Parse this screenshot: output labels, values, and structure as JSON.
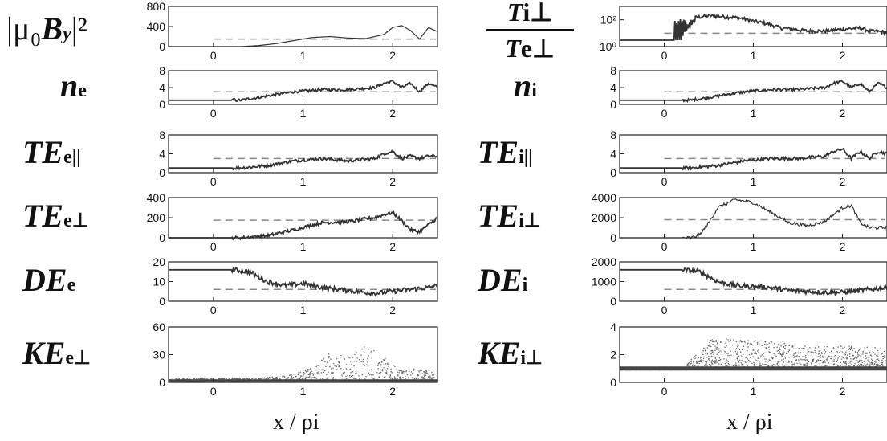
{
  "chart_data": [
    {
      "id": "L0",
      "type": "line",
      "ylabel_parts": {
        "pre": "|μ₀",
        "main": "B",
        "sub": "y",
        "post": "|²"
      },
      "yticks": [
        0,
        400,
        800
      ],
      "ylim": [
        0,
        800
      ],
      "xlim": [
        -0.5,
        2.5
      ],
      "xticks": [
        0,
        1,
        2
      ],
      "dashed_level": 150,
      "x": [
        -0.5,
        0.3,
        0.5,
        0.7,
        0.9,
        1.1,
        1.3,
        1.5,
        1.7,
        1.9,
        2.0,
        2.1,
        2.2,
        2.3,
        2.4,
        2.5
      ],
      "values": [
        0,
        0,
        20,
        60,
        120,
        180,
        200,
        170,
        160,
        240,
        380,
        420,
        320,
        150,
        380,
        300
      ]
    },
    {
      "id": "R0",
      "type": "line",
      "ylabel_parts": {
        "num": "T",
        "num_sub": "i⊥",
        "den": "T",
        "den_sub": "e⊥"
      },
      "yticks": [
        "10⁰",
        "10²"
      ],
      "yscale": "log",
      "ylim": [
        1,
        1000
      ],
      "xlim": [
        -0.5,
        2.5
      ],
      "xticks": [
        0,
        1,
        2
      ],
      "dashed_level": 10,
      "x": [
        -0.5,
        0.1,
        0.2,
        0.3,
        0.35,
        0.5,
        0.8,
        1.0,
        1.3,
        1.6,
        1.8,
        2.0,
        2.2,
        2.3,
        2.5
      ],
      "values": [
        3,
        3,
        3,
        30,
        150,
        200,
        150,
        80,
        25,
        15,
        15,
        20,
        25,
        15,
        12
      ]
    },
    {
      "id": "L1",
      "type": "line",
      "ylabel_parts": {
        "main": "n",
        "sub": "e"
      },
      "yticks": [
        0,
        4,
        8
      ],
      "ylim": [
        0,
        8
      ],
      "xlim": [
        -0.5,
        2.5
      ],
      "xticks": [
        0,
        1,
        2
      ],
      "dashed_level": 3,
      "x": [
        -0.5,
        0.3,
        0.6,
        0.9,
        1.2,
        1.5,
        1.8,
        1.9,
        2.0,
        2.1,
        2.2,
        2.3,
        2.4,
        2.5
      ],
      "values": [
        1,
        1,
        2,
        3,
        3.5,
        3.5,
        4,
        5,
        5.5,
        4,
        5,
        3,
        5,
        4
      ]
    },
    {
      "id": "R1",
      "type": "line",
      "ylabel_parts": {
        "main": "n",
        "sub": "i"
      },
      "yticks": [
        0,
        4,
        8
      ],
      "ylim": [
        0,
        8
      ],
      "xlim": [
        -0.5,
        2.5
      ],
      "xticks": [
        0,
        1,
        2
      ],
      "dashed_level": 3,
      "x": [
        -0.5,
        0.3,
        0.6,
        0.9,
        1.2,
        1.5,
        1.8,
        1.9,
        2.0,
        2.1,
        2.2,
        2.3,
        2.4,
        2.5
      ],
      "values": [
        1,
        1,
        2,
        3,
        3.5,
        3.5,
        4,
        5,
        5.5,
        4,
        5,
        3,
        5,
        4
      ]
    },
    {
      "id": "L2",
      "type": "line",
      "ylabel_parts": {
        "main": "TE",
        "sub": "e||"
      },
      "yticks": [
        0,
        4,
        8
      ],
      "ylim": [
        0,
        8
      ],
      "xlim": [
        -0.5,
        2.5
      ],
      "xticks": [
        0,
        1,
        2
      ],
      "dashed_level": 3,
      "x": [
        -0.5,
        0.3,
        0.6,
        0.9,
        1.2,
        1.5,
        1.8,
        1.9,
        2.0,
        2.1,
        2.2,
        2.3,
        2.4,
        2.5
      ],
      "values": [
        1,
        1,
        1.5,
        2.5,
        3,
        2.5,
        3,
        4,
        4.5,
        3,
        3.5,
        3,
        3.5,
        3.5
      ]
    },
    {
      "id": "R2",
      "type": "line",
      "ylabel_parts": {
        "main": "TE",
        "sub": "i||"
      },
      "yticks": [
        0,
        4,
        8
      ],
      "ylim": [
        0,
        8
      ],
      "xlim": [
        -0.5,
        2.5
      ],
      "xticks": [
        0,
        1,
        2
      ],
      "dashed_level": 3,
      "x": [
        -0.5,
        0.3,
        0.6,
        0.9,
        1.2,
        1.5,
        1.8,
        1.9,
        2.0,
        2.1,
        2.2,
        2.3,
        2.4,
        2.5
      ],
      "values": [
        1,
        1,
        1.5,
        2.5,
        3,
        3,
        3.5,
        4.5,
        5,
        3,
        4.5,
        3,
        4.5,
        4
      ]
    },
    {
      "id": "L3",
      "type": "line",
      "ylabel_parts": {
        "main": "TE",
        "sub": "e⊥"
      },
      "yticks": [
        0,
        200,
        400
      ],
      "ylim": [
        0,
        400
      ],
      "xlim": [
        -0.5,
        2.5
      ],
      "xticks": [
        0,
        1,
        2
      ],
      "dashed_level": 175,
      "x": [
        -0.5,
        0.3,
        0.6,
        0.9,
        1.2,
        1.5,
        1.8,
        1.9,
        2.0,
        2.1,
        2.2,
        2.3,
        2.4,
        2.5
      ],
      "values": [
        0,
        0,
        20,
        80,
        150,
        160,
        200,
        230,
        250,
        170,
        80,
        60,
        130,
        200
      ]
    },
    {
      "id": "R3",
      "type": "line",
      "ylabel_parts": {
        "main": "TE",
        "sub": "i⊥"
      },
      "yticks": [
        0,
        2000,
        4000
      ],
      "ylim": [
        0,
        4000
      ],
      "xlim": [
        -0.5,
        2.5
      ],
      "xticks": [
        0,
        1,
        2
      ],
      "dashed_level": 1800,
      "x": [
        -0.5,
        0.3,
        0.4,
        0.5,
        0.6,
        0.8,
        1.0,
        1.2,
        1.4,
        1.6,
        1.8,
        2.0,
        2.1,
        2.2,
        2.3,
        2.5
      ],
      "values": [
        0,
        0,
        300,
        1500,
        3000,
        3800,
        3500,
        2500,
        1500,
        1200,
        1600,
        3000,
        3200,
        1500,
        1000,
        1000
      ]
    },
    {
      "id": "L4",
      "type": "line",
      "ylabel_parts": {
        "main": "DE",
        "sub": "e"
      },
      "yticks": [
        0,
        10,
        20
      ],
      "ylim": [
        0,
        20
      ],
      "xlim": [
        -0.5,
        2.5
      ],
      "xticks": [
        0,
        1,
        2
      ],
      "dashed_level": 6,
      "x": [
        -0.5,
        0.2,
        0.4,
        0.6,
        0.8,
        1.0,
        1.2,
        1.4,
        1.6,
        1.8,
        2.0,
        2.2,
        2.4,
        2.5
      ],
      "values": [
        16,
        16,
        15,
        10,
        8,
        9,
        7,
        6,
        5,
        4,
        5,
        6,
        7,
        8
      ]
    },
    {
      "id": "R4",
      "type": "line",
      "ylabel_parts": {
        "main": "DE",
        "sub": "i"
      },
      "yticks": [
        0,
        1000,
        2000
      ],
      "ylim": [
        0,
        2000
      ],
      "xlim": [
        -0.5,
        2.5
      ],
      "xticks": [
        0,
        1,
        2
      ],
      "dashed_level": 600,
      "x": [
        -0.5,
        0.2,
        0.4,
        0.6,
        0.8,
        1.0,
        1.2,
        1.4,
        1.6,
        1.8,
        2.0,
        2.2,
        2.4,
        2.5
      ],
      "values": [
        1600,
        1600,
        1500,
        1000,
        800,
        750,
        700,
        550,
        500,
        450,
        450,
        550,
        650,
        700
      ]
    },
    {
      "id": "L5",
      "type": "scatter",
      "ylabel_parts": {
        "main": "KE",
        "sub": "e⊥"
      },
      "yticks": [
        0,
        30,
        60
      ],
      "ylim": [
        0,
        60
      ],
      "xlim": [
        -0.5,
        2.5
      ],
      "xticks": [
        0,
        1,
        2
      ],
      "xlabel": "x / ρi",
      "x": [
        -0.5,
        0.4,
        0.8,
        1.1,
        1.3,
        1.5,
        1.7,
        1.9,
        2.1,
        2.3,
        2.5
      ],
      "values": [
        4,
        4,
        6,
        12,
        25,
        20,
        30,
        20,
        10,
        12,
        8
      ]
    },
    {
      "id": "R5",
      "type": "scatter",
      "ylabel_parts": {
        "main": "KE",
        "sub": "i⊥"
      },
      "yticks": [
        0,
        2,
        4
      ],
      "ylim": [
        0,
        4
      ],
      "xlim": [
        -0.5,
        2.5
      ],
      "xticks": [
        0,
        1,
        2
      ],
      "xlabel": "x / ρi",
      "x": [
        -0.5,
        0.2,
        0.3,
        0.5,
        0.8,
        1.2,
        1.6,
        2.0,
        2.5
      ],
      "values": [
        1,
        1,
        1.5,
        2.5,
        2.6,
        2.4,
        2.2,
        2.2,
        2.1
      ]
    }
  ]
}
